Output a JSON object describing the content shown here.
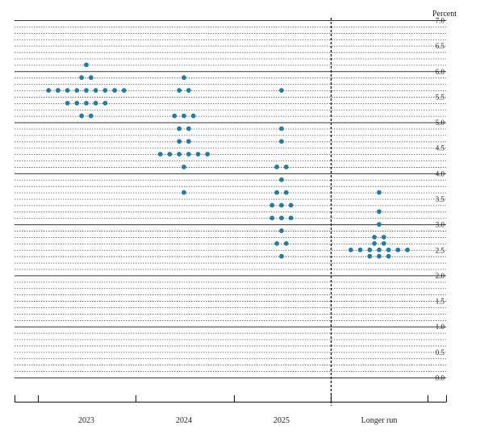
{
  "chart_data": {
    "type": "scatter",
    "subtype": "dot-plot",
    "unit_label": "Percent",
    "categories": [
      "2023",
      "2024",
      "2025",
      "Longer run"
    ],
    "ylim": [
      0,
      7
    ],
    "yticks": [
      "0.0",
      "0.5",
      "1.0",
      "1.5",
      "2.0",
      "2.5",
      "3.0",
      "3.5",
      "4.0",
      "4.5",
      "5.0",
      "5.5",
      "6.0",
      "6.5",
      "7.0"
    ],
    "grid": "horizontal: solid at whole percents, dotted at eighths",
    "separator": "dashed vertical line before Longer run",
    "dot_color": "#1f7ea6",
    "series": [
      {
        "category": "2023",
        "points": [
          {
            "y": 6.125,
            "count": 1
          },
          {
            "y": 5.875,
            "count": 2
          },
          {
            "y": 5.625,
            "count": 9
          },
          {
            "y": 5.375,
            "count": 5
          },
          {
            "y": 5.125,
            "count": 2
          }
        ]
      },
      {
        "category": "2024",
        "points": [
          {
            "y": 5.875,
            "count": 1
          },
          {
            "y": 5.625,
            "count": 2
          },
          {
            "y": 5.125,
            "count": 3
          },
          {
            "y": 4.875,
            "count": 2
          },
          {
            "y": 4.625,
            "count": 2
          },
          {
            "y": 4.375,
            "count": 6
          },
          {
            "y": 4.125,
            "count": 1
          },
          {
            "y": 3.625,
            "count": 1
          }
        ]
      },
      {
        "category": "2025",
        "points": [
          {
            "y": 5.625,
            "count": 1
          },
          {
            "y": 4.875,
            "count": 1
          },
          {
            "y": 4.625,
            "count": 1
          },
          {
            "y": 4.125,
            "count": 2
          },
          {
            "y": 3.875,
            "count": 1
          },
          {
            "y": 3.625,
            "count": 2
          },
          {
            "y": 3.375,
            "count": 3
          },
          {
            "y": 3.125,
            "count": 3
          },
          {
            "y": 2.875,
            "count": 1
          },
          {
            "y": 2.625,
            "count": 2
          },
          {
            "y": 2.375,
            "count": 1
          }
        ]
      },
      {
        "category": "Longer run",
        "points": [
          {
            "y": 3.625,
            "count": 1
          },
          {
            "y": 3.25,
            "count": 1
          },
          {
            "y": 3.0,
            "count": 1
          },
          {
            "y": 2.75,
            "count": 2
          },
          {
            "y": 2.625,
            "count": 2
          },
          {
            "y": 2.5,
            "count": 7
          },
          {
            "y": 2.375,
            "count": 3
          }
        ]
      }
    ]
  }
}
